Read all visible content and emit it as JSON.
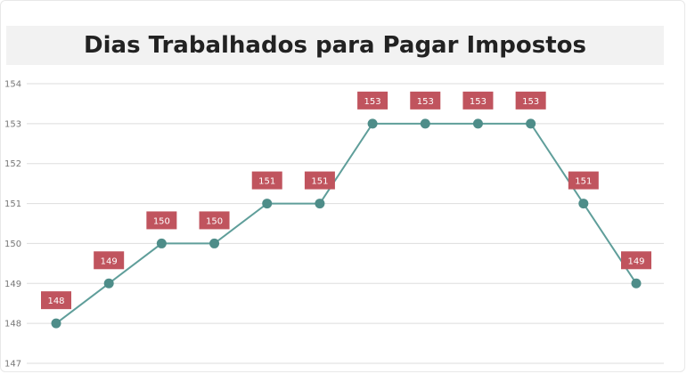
{
  "chart_data": {
    "type": "line",
    "title": "Dias Trabalhados para Pagar Impostos",
    "xlabel": "",
    "ylabel": "",
    "ylim": [
      147,
      154
    ],
    "y_ticks": [
      "154",
      "153",
      "152",
      "151",
      "150",
      "149",
      "148",
      "147"
    ],
    "series": [
      {
        "values": [
          148,
          149,
          150,
          150,
          151,
          151,
          153,
          153,
          153,
          153,
          151,
          149
        ]
      }
    ],
    "data_labels": [
      "148",
      "149",
      "150",
      "150",
      "151",
      "151",
      "153",
      "153",
      "153",
      "153",
      "151",
      "149"
    ],
    "grid": true,
    "legend": "none"
  },
  "colors": {
    "line": "#5f9e9a",
    "marker": "#4e8d89",
    "label_bg": "#c0545e",
    "grid": "#dddddd",
    "title_bg": "#f2f2f2"
  }
}
